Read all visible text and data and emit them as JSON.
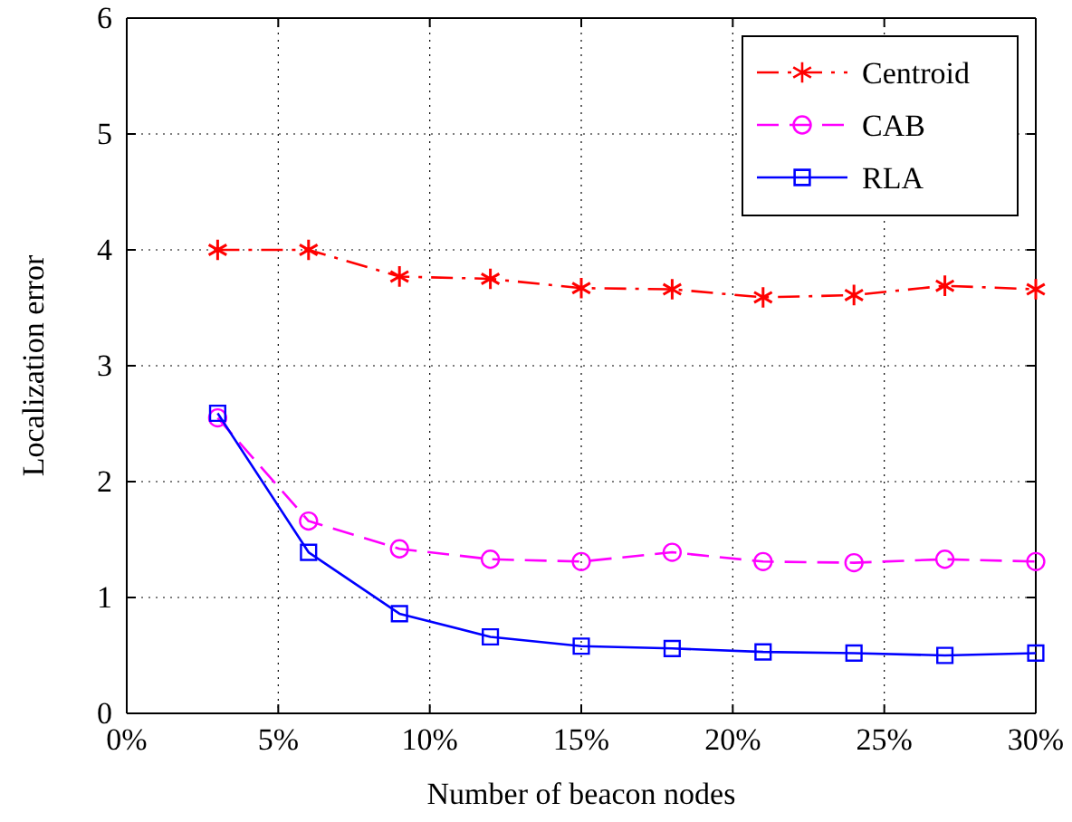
{
  "chart_data": {
    "type": "line",
    "xlabel": "Number of beacon nodes",
    "ylabel": "Localization error",
    "x": [
      3,
      6,
      9,
      12,
      15,
      18,
      21,
      24,
      27,
      30
    ],
    "series": [
      {
        "name": "Centroid",
        "color": "#ff0000",
        "marker": "cross",
        "line_style": "dashdot",
        "values": [
          4.0,
          4.0,
          3.77,
          3.75,
          3.67,
          3.66,
          3.59,
          3.61,
          3.69,
          3.66
        ]
      },
      {
        "name": "CAB",
        "color": "#ff00ff",
        "marker": "circle",
        "line_style": "dashed",
        "values": [
          2.55,
          1.66,
          1.42,
          1.33,
          1.31,
          1.39,
          1.31,
          1.3,
          1.33,
          1.31
        ]
      },
      {
        "name": "RLA",
        "color": "#0000ff",
        "marker": "square",
        "line_style": "solid",
        "values": [
          2.59,
          1.39,
          0.86,
          0.66,
          0.58,
          0.56,
          0.53,
          0.52,
          0.5,
          0.52
        ]
      }
    ],
    "xlim": [
      0,
      30
    ],
    "xticks": [
      {
        "value": 0,
        "label": "0%"
      },
      {
        "value": 5,
        "label": "5%"
      },
      {
        "value": 10,
        "label": "10%"
      },
      {
        "value": 15,
        "label": "15%"
      },
      {
        "value": 20,
        "label": "20%"
      },
      {
        "value": 25,
        "label": "25%"
      },
      {
        "value": 30,
        "label": "30%"
      }
    ],
    "ylim": [
      0,
      6
    ],
    "yticks": [
      0,
      1,
      2,
      3,
      4,
      5,
      6
    ],
    "grid": true,
    "legend": "top right"
  }
}
